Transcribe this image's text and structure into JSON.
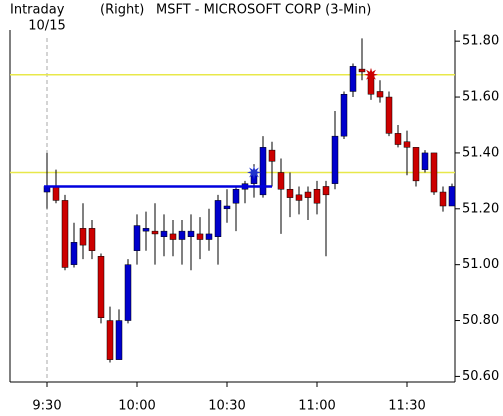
{
  "chart_data": {
    "type": "candlestick",
    "title": "MSFT - MICROSOFT CORP (3-Min)",
    "mode_label": "Intraday",
    "axis_side_label": "(Right)",
    "date_label": "10/15",
    "categories": [
      "9:30",
      null,
      null,
      null,
      null,
      null,
      null,
      null,
      null,
      null,
      "10:00",
      null,
      null,
      null,
      null,
      null,
      null,
      null,
      null,
      null,
      "10:30",
      null,
      null,
      null,
      null,
      null,
      null,
      null,
      null,
      null,
      "11:00",
      null,
      null,
      null,
      null,
      null,
      null,
      null,
      null,
      null,
      "11:30",
      null,
      null,
      null,
      null,
      null
    ],
    "open": [
      51.26,
      51.28,
      51.23,
      51.0,
      51.13,
      51.13,
      51.03,
      50.8,
      50.66,
      50.8,
      51.05,
      51.12,
      51.12,
      51.1,
      51.11,
      51.09,
      51.1,
      51.11,
      51.09,
      51.1,
      51.2,
      51.22,
      51.27,
      51.29,
      51.25,
      51.41,
      51.33,
      51.27,
      51.25,
      51.26,
      51.27,
      51.28,
      51.29,
      51.46,
      51.62,
      51.7,
      51.68,
      51.62,
      51.6,
      51.47,
      51.44,
      51.42,
      51.34,
      51.4,
      51.26,
      51.21
    ],
    "high": [
      51.4,
      51.34,
      51.25,
      51.15,
      51.22,
      51.16,
      51.04,
      50.85,
      50.84,
      51.02,
      51.18,
      51.19,
      51.22,
      51.18,
      51.16,
      51.16,
      51.18,
      51.17,
      51.2,
      51.25,
      51.27,
      51.28,
      51.3,
      51.36,
      51.46,
      51.44,
      51.38,
      51.33,
      51.28,
      51.28,
      51.3,
      51.3,
      51.55,
      51.62,
      51.72,
      51.81,
      51.7,
      51.66,
      51.62,
      51.5,
      51.48,
      51.42,
      51.41,
      51.4,
      51.28,
      51.29
    ],
    "low": [
      51.2,
      51.22,
      50.98,
      50.99,
      51.02,
      51.02,
      50.79,
      50.65,
      50.66,
      50.79,
      51.0,
      51.05,
      51.0,
      51.03,
      51.03,
      51.0,
      50.98,
      51.02,
      51.05,
      51.0,
      51.15,
      51.12,
      51.22,
      51.24,
      51.24,
      51.28,
      51.11,
      51.17,
      51.18,
      51.16,
      51.18,
      51.03,
      51.27,
      51.45,
      51.6,
      51.66,
      51.59,
      51.58,
      51.46,
      51.42,
      51.32,
      51.28,
      51.33,
      51.25,
      51.19,
      51.21
    ],
    "close": [
      51.28,
      51.23,
      50.99,
      51.08,
      51.07,
      51.05,
      50.81,
      50.66,
      50.8,
      51.0,
      51.14,
      51.13,
      51.11,
      51.12,
      51.09,
      51.12,
      51.12,
      51.09,
      51.11,
      51.23,
      51.21,
      51.27,
      51.29,
      51.33,
      51.42,
      51.37,
      51.27,
      51.24,
      51.23,
      51.24,
      51.22,
      51.25,
      51.46,
      51.61,
      51.71,
      51.69,
      51.61,
      51.6,
      51.47,
      51.43,
      51.42,
      51.3,
      51.4,
      51.26,
      51.21,
      51.28
    ],
    "up_color": "#0000cc",
    "down_color": "#cc0000",
    "reference_lines": [
      {
        "value": 51.68,
        "color": "#e8e84a"
      },
      {
        "value": 51.33,
        "color": "#e8e84a"
      }
    ],
    "trend_line": {
      "value": 51.28,
      "from": 0,
      "to": 25,
      "color": "#0000dd"
    },
    "markers": [
      {
        "index": 23,
        "value": 51.33,
        "color": "#2233cc"
      },
      {
        "index": 36,
        "value": 51.68,
        "color": "#cc0000"
      }
    ],
    "ylim": [
      50.58,
      51.84
    ],
    "yticks": [
      {
        "value": 50.6,
        "label": "50.60"
      },
      {
        "value": 50.8,
        "label": "50.80"
      },
      {
        "value": 51.0,
        "label": "51.00"
      },
      {
        "value": 51.2,
        "label": "51.20"
      },
      {
        "value": 51.4,
        "label": "51.40"
      },
      {
        "value": 51.6,
        "label": "51.60"
      },
      {
        "value": 51.8,
        "label": "51.80"
      }
    ]
  }
}
